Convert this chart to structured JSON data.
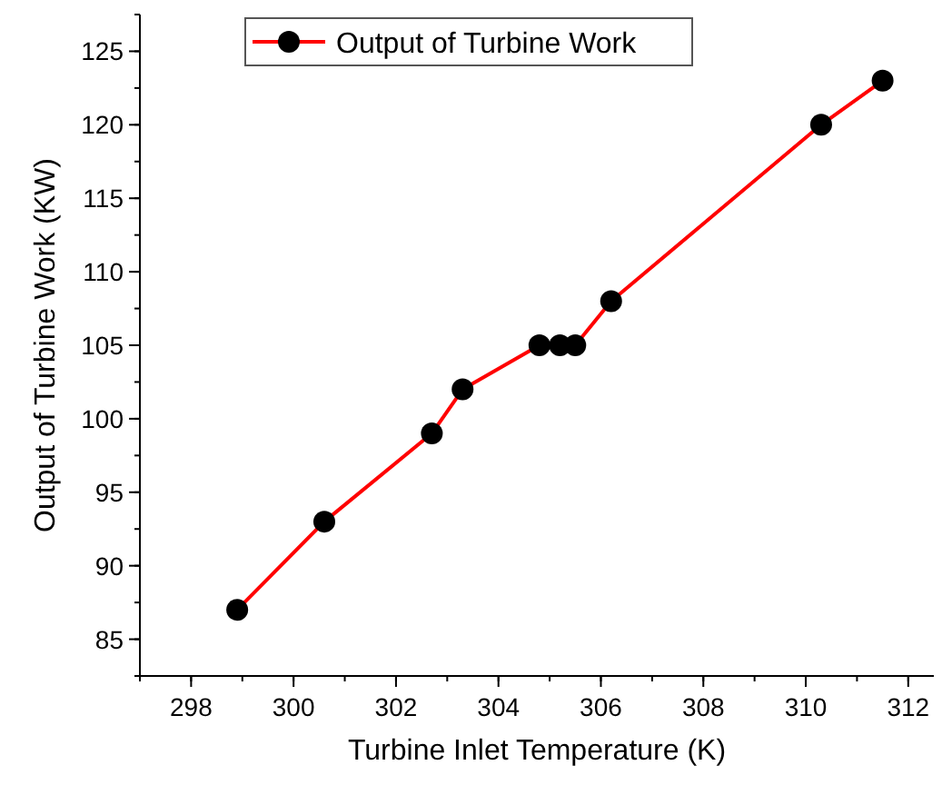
{
  "chart_data": {
    "type": "line",
    "xlabel": "Turbine Inlet Temperature (K)",
    "ylabel": "Output of Turbine Work (KW)",
    "x": [
      298.9,
      300.6,
      302.7,
      303.3,
      304.8,
      305.2,
      305.5,
      306.2,
      310.3,
      311.5
    ],
    "series": [
      {
        "name": "Output of Turbine Work",
        "color": "#ff0000",
        "values": [
          87,
          93,
          99,
          102,
          105,
          105,
          105,
          108,
          120,
          123
        ]
      }
    ],
    "xlim": [
      297,
      312.5
    ],
    "xticks": [
      298,
      300,
      302,
      304,
      306,
      308,
      310,
      312
    ],
    "ylim": [
      82.5,
      127.5
    ],
    "yticks": [
      85,
      90,
      95,
      100,
      105,
      110,
      115,
      120,
      125
    ],
    "marker": "circle",
    "line_style": "solid",
    "legend": "top left",
    "grid": false
  }
}
